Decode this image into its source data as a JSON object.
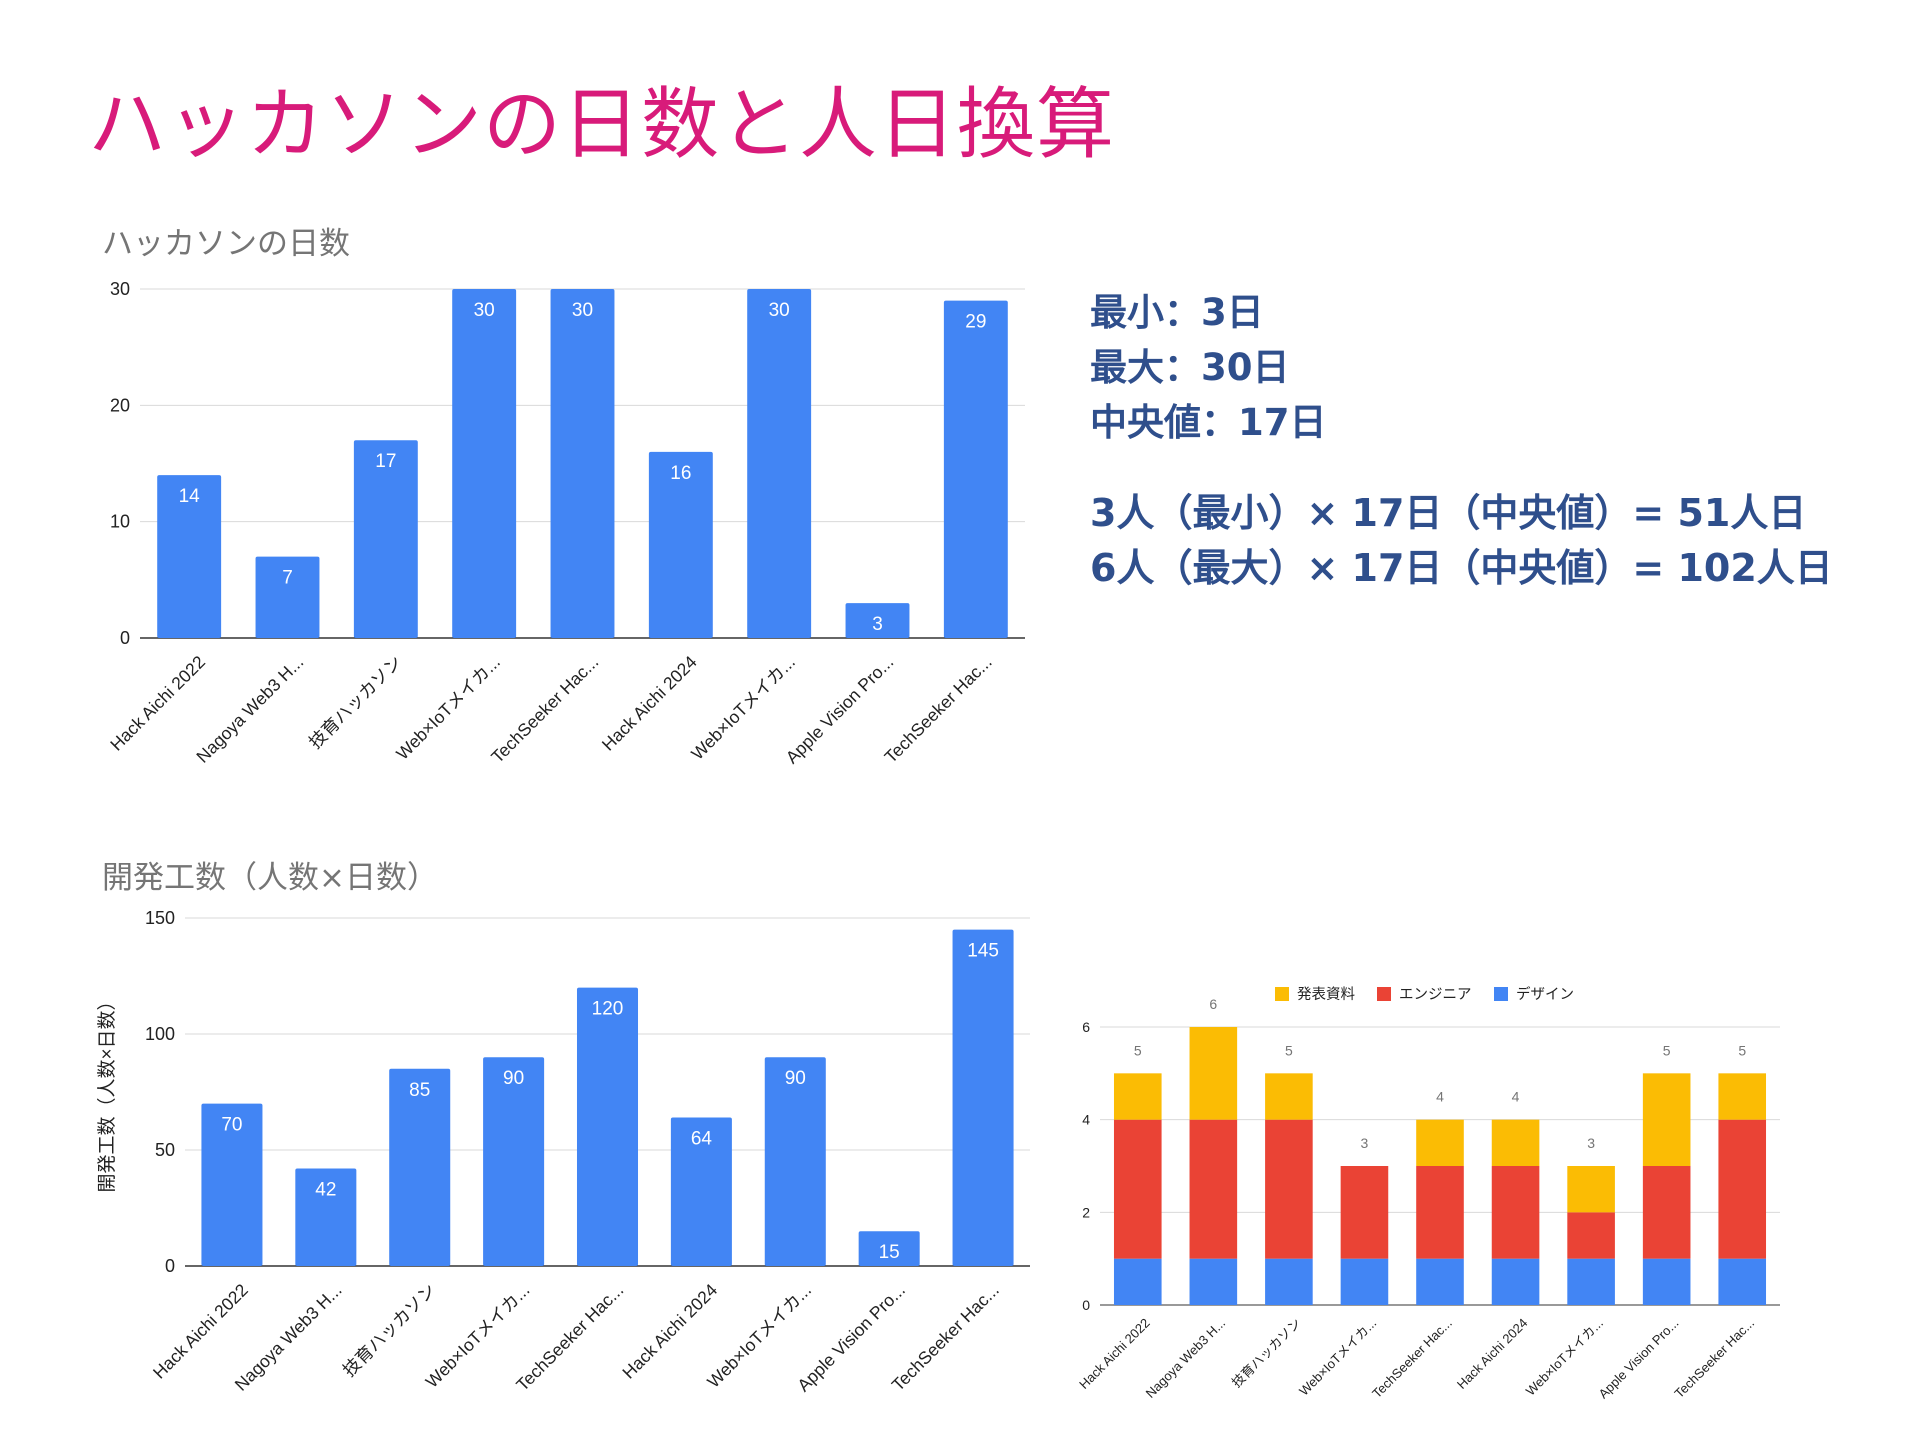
{
  "slide": {
    "title": "ハッカソンの日数と人日換算"
  },
  "stats": {
    "min": "最小：3日",
    "max": "最大：30日",
    "median": "中央値：17日",
    "calc_min": "3人（最小）× 17日（中央値）= 51人日",
    "calc_max": "6人（最大）× 17日（中央値）= 102人日"
  },
  "colors": {
    "title": "#d81b7a",
    "bar": "#4285f4",
    "stat_text": "#2f4f8c",
    "design": "#4285f4",
    "engineer": "#ea4335",
    "presentation": "#fbbc04"
  },
  "chart_data": [
    {
      "type": "bar",
      "title": "ハッカソンの日数",
      "categories": [
        "Hack Aichi 2022",
        "Nagoya Web3 H...",
        "技育ハッカソン",
        "Web×IoTメイカ...",
        "TechSeeker Hac...",
        "Hack Aichi 2024",
        "Web×IoTメイカ...",
        "Apple Vision Pro...",
        "TechSeeker Hac..."
      ],
      "values": [
        14,
        7,
        17,
        30,
        30,
        16,
        30,
        3,
        29
      ],
      "yticks": [
        0,
        10,
        20,
        30
      ],
      "ylim": [
        0,
        30
      ],
      "xlabel": "",
      "ylabel": "",
      "grid": true,
      "data_labels": true
    },
    {
      "type": "bar",
      "title": "開発工数（人数×日数）",
      "categories": [
        "Hack Aichi 2022",
        "Nagoya Web3 H...",
        "技育ハッカソン",
        "Web×IoTメイカ...",
        "TechSeeker Hac...",
        "Hack Aichi 2024",
        "Web×IoTメイカ...",
        "Apple Vision Pro...",
        "TechSeeker Hac..."
      ],
      "values": [
        70,
        42,
        85,
        90,
        120,
        64,
        90,
        15,
        145
      ],
      "yticks": [
        0,
        50,
        100,
        150
      ],
      "ylim": [
        0,
        150
      ],
      "xlabel": "",
      "ylabel": "開発工数（人数×日数）",
      "grid": true,
      "data_labels": true
    },
    {
      "type": "bar",
      "stacked": true,
      "title": "",
      "categories": [
        "Hack Aichi 2022",
        "Nagoya Web3 H...",
        "技育ハッカソン",
        "Web×IoTメイカ...",
        "TechSeeker Hac...",
        "Hack Aichi 2024",
        "Web×IoTメイカ...",
        "Apple Vision Pro...",
        "TechSeeker Hac..."
      ],
      "series": [
        {
          "name": "デザイン",
          "values": [
            1,
            1,
            1,
            1,
            1,
            1,
            1,
            1,
            1
          ]
        },
        {
          "name": "エンジニア",
          "values": [
            3,
            3,
            3,
            2,
            2,
            2,
            1,
            2,
            3
          ]
        },
        {
          "name": "発表資料",
          "values": [
            1,
            2,
            1,
            0,
            1,
            1,
            1,
            2,
            1
          ]
        }
      ],
      "legend_order": [
        "発表資料",
        "エンジニア",
        "デザイン"
      ],
      "totals": [
        5,
        6,
        5,
        3,
        4,
        4,
        3,
        5,
        5
      ],
      "yticks": [
        0,
        2,
        4,
        6
      ],
      "ylim": [
        0,
        6
      ],
      "xlabel": "",
      "ylabel": "",
      "legend": "top",
      "grid": true
    }
  ]
}
